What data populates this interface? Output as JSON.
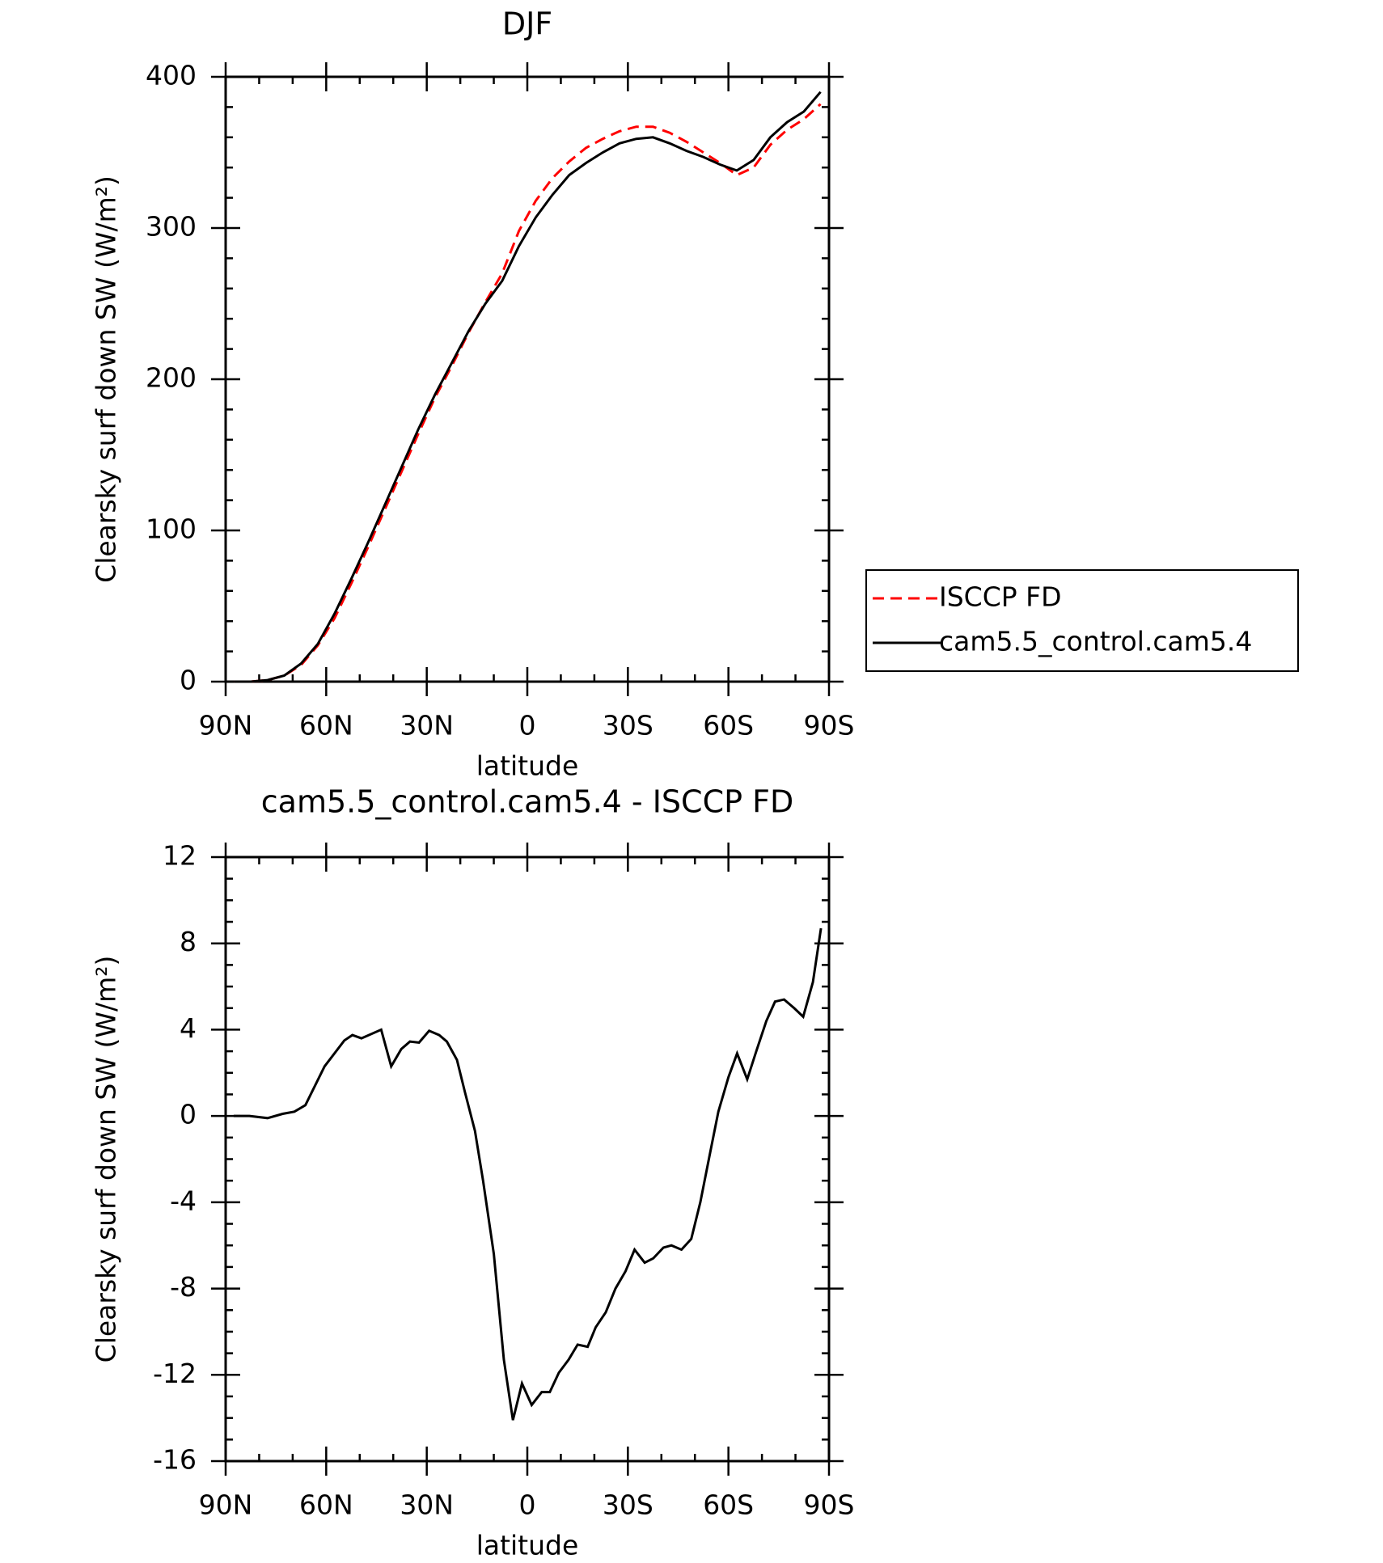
{
  "chart_data": [
    {
      "type": "line",
      "title": "DJF",
      "xlabel": "latitude",
      "ylabel": "Clearsky surf down SW (W/m²)",
      "x": [
        87.5,
        82.5,
        77.5,
        72.5,
        67.5,
        62.5,
        57.5,
        52.5,
        47.5,
        42.5,
        37.5,
        32.5,
        27.5,
        22.5,
        17.5,
        12.5,
        7.5,
        2.5,
        -2.5,
        -7.5,
        -12.5,
        -17.5,
        -22.5,
        -27.5,
        -32.5,
        -37.5,
        -42.5,
        -47.5,
        -52.5,
        -57.5,
        -62.5,
        -67.5,
        -72.5,
        -77.5,
        -82.5,
        -87.5
      ],
      "series": [
        {
          "name": "ISCCP FD",
          "color": "#ff0000",
          "dashed": true,
          "values": [
            0,
            0,
            1,
            4,
            11,
            24,
            42,
            65,
            89,
            114,
            139,
            164,
            188,
            209,
            231,
            251,
            270,
            298,
            318,
            333,
            344,
            353,
            359,
            364,
            367,
            367,
            363,
            357,
            350,
            343,
            335,
            340,
            355,
            365,
            372,
            382
          ]
        },
        {
          "name": "cam5.5_control.cam5.4",
          "color": "#000000",
          "dashed": false,
          "values": [
            0,
            0,
            1,
            4,
            12,
            25,
            45,
            68,
            92,
            117,
            142,
            167,
            190,
            211,
            232,
            250,
            265,
            288,
            307,
            322,
            335,
            343,
            350,
            356,
            359,
            360,
            356,
            351,
            347,
            342,
            338,
            345,
            360,
            370,
            377,
            390
          ]
        }
      ],
      "xlim": [
        90,
        -90
      ],
      "ylim": [
        0,
        400
      ],
      "xticks": [
        {
          "value": 90,
          "label": "90N"
        },
        {
          "value": 60,
          "label": "60N"
        },
        {
          "value": 30,
          "label": "30N"
        },
        0,
        {
          "value": -30,
          "label": "30S"
        },
        {
          "value": -60,
          "label": "60S"
        },
        {
          "value": -90,
          "label": "90S"
        }
      ],
      "yticks": [
        0,
        100,
        200,
        300,
        400
      ],
      "legend": "right"
    },
    {
      "type": "line",
      "title": "cam5.5_control.cam5.4 - ISCCP FD",
      "xlabel": "latitude",
      "ylabel": "Clearsky surf down SW (W/m²)",
      "x": [
        87.6,
        82.9,
        77.5,
        73,
        69.5,
        66.2,
        60.5,
        54.6,
        52.2,
        49.5,
        43.6,
        40.6,
        37.6,
        35,
        32.3,
        29.3,
        26.3,
        24,
        21,
        18.6,
        15.6,
        13.2,
        10,
        7,
        4.3,
        1.6,
        -1.3,
        -4.3,
        -6.7,
        -9.4,
        -12.3,
        -15,
        -18,
        -20.4,
        -23.4,
        -26.3,
        -29.3,
        -32,
        -35,
        -37.6,
        -40.6,
        -43,
        -46,
        -48.9,
        -51.6,
        -54.3,
        -57,
        -60,
        -62.6,
        -65.6,
        -68.3,
        -71.3,
        -73.9,
        -76.6,
        -79.6,
        -82.3,
        -85.2,
        -87.6
      ],
      "series": [
        {
          "color": "#000000",
          "dashed": false,
          "values": [
            0,
            0,
            -0.1,
            0.1,
            0.2,
            0.5,
            2.3,
            3.5,
            3.75,
            3.6,
            4.0,
            2.3,
            3.1,
            3.45,
            3.4,
            3.95,
            3.75,
            3.45,
            2.6,
            1.1,
            -0.7,
            -3.0,
            -6.4,
            -11.3,
            -14.1,
            -12.4,
            -13.4,
            -12.8,
            -12.8,
            -11.9,
            -11.3,
            -10.6,
            -10.7,
            -9.8,
            -9.1,
            -8.0,
            -7.2,
            -6.2,
            -6.8,
            -6.6,
            -6.1,
            -6.0,
            -6.2,
            -5.7,
            -4.0,
            -1.9,
            0.2,
            1.8,
            2.9,
            1.7,
            3.0,
            4.4,
            5.3,
            5.4,
            5.0,
            4.6,
            6.2,
            8.7
          ]
        }
      ],
      "xlim": [
        90,
        -90
      ],
      "ylim": [
        -16,
        12
      ],
      "xticks": [
        {
          "value": 90,
          "label": "90N"
        },
        {
          "value": 60,
          "label": "60N"
        },
        {
          "value": 30,
          "label": "30N"
        },
        0,
        {
          "value": -30,
          "label": "30S"
        },
        {
          "value": -60,
          "label": "60S"
        },
        {
          "value": -90,
          "label": "90S"
        }
      ],
      "yticks": [
        -16,
        -12,
        -8,
        -4,
        0,
        4,
        8,
        12
      ]
    }
  ]
}
